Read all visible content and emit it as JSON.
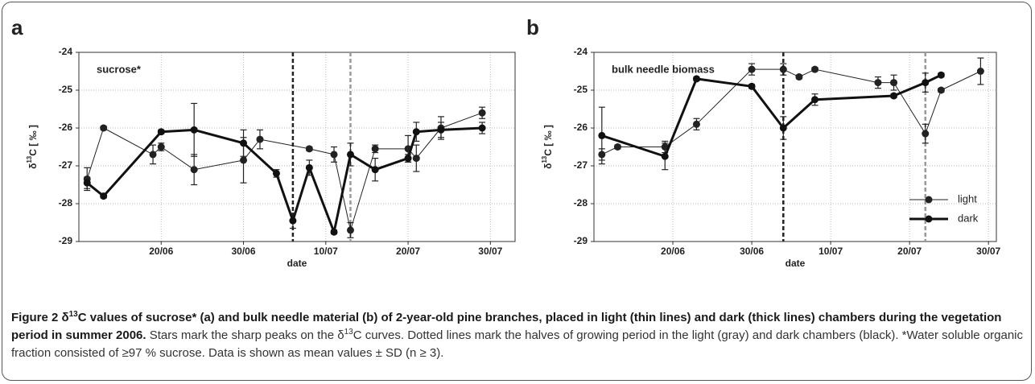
{
  "chart_data": [
    {
      "type": "line",
      "panel_label": "a",
      "annotation": "sucrose*",
      "xlabel": "date",
      "ylabel": {
        "prefix": "δ",
        "sup": "13",
        "suffix": "C [ ‰ ]"
      },
      "xlim": [
        "10/06",
        "02/08"
      ],
      "xticks": [
        "20/06",
        "30/06",
        "10/07",
        "20/07",
        "30/07"
      ],
      "ylim": [
        -29,
        -24
      ],
      "yticks": [
        -24,
        -25,
        -26,
        -27,
        -28,
        -29
      ],
      "grid": true,
      "legend": false,
      "vlines": [
        {
          "x": "06/07",
          "color": "#222222"
        },
        {
          "x": "13/07",
          "color": "#999999"
        }
      ],
      "series": [
        {
          "color": "#222222",
          "line_width": 1,
          "x": [
            "11/06",
            "13/06",
            "19/06",
            "20/06",
            "24/06",
            "30/06",
            "02/07",
            "08/07",
            "11/07",
            "13/07",
            "16/07",
            "20/07",
            "21/07",
            "24/07",
            "29/07"
          ],
          "values": [
            -27.35,
            -26.0,
            -26.7,
            -26.5,
            -27.1,
            -26.85,
            -26.3,
            -26.55,
            -26.7,
            -28.7,
            -26.55,
            -26.55,
            -26.8,
            -26.0,
            -25.6
          ],
          "errors": [
            0.3,
            0.05,
            0.25,
            0.1,
            0.4,
            0.6,
            0.25,
            0.05,
            0.2,
            0.2,
            0.1,
            0.35,
            0.35,
            0.3,
            0.15
          ]
        },
        {
          "color": "#111111",
          "line_width": 3,
          "x": [
            "11/06",
            "13/06",
            "20/06",
            "24/06",
            "30/06",
            "04/07",
            "06/07",
            "08/07",
            "11/07",
            "13/07",
            "16/07",
            "20/07",
            "21/07",
            "24/07",
            "29/07"
          ],
          "values": [
            -27.45,
            -27.8,
            -26.1,
            -26.05,
            -26.4,
            -27.2,
            -28.45,
            -27.05,
            -28.75,
            -26.7,
            -27.1,
            -26.8,
            -26.1,
            -26.05,
            -26.0
          ],
          "errors": [
            0.15,
            0.05,
            0.05,
            0.7,
            0.35,
            0.1,
            0.2,
            0.2,
            0.05,
            0.3,
            0.3,
            0.1,
            0.25,
            0.2,
            0.15
          ]
        }
      ]
    },
    {
      "type": "line",
      "panel_label": "b",
      "annotation": "bulk needle biomass",
      "xlabel": "date",
      "ylabel": {
        "prefix": "δ",
        "sup": "13",
        "suffix": "C [ ‰ ]"
      },
      "xlim": [
        "10/06",
        "31/07"
      ],
      "xticks": [
        "20/06",
        "30/06",
        "10/07",
        "20/07",
        "30/07"
      ],
      "ylim": [
        -29,
        -24
      ],
      "yticks": [
        -24,
        -25,
        -26,
        -27,
        -28,
        -29
      ],
      "grid": true,
      "legend": "lower right",
      "vlines": [
        {
          "x": "04/07",
          "color": "#222222"
        },
        {
          "x": "22/07",
          "color": "#999999"
        }
      ],
      "series": [
        {
          "name": "light",
          "color": "#222222",
          "line_width": 1,
          "x": [
            "11/06",
            "13/06",
            "19/06",
            "23/06",
            "30/06",
            "04/07",
            "06/07",
            "08/07",
            "16/07",
            "18/07",
            "22/07",
            "24/07",
            "29/07"
          ],
          "values": [
            -26.7,
            -26.5,
            -26.5,
            -25.9,
            -24.45,
            -24.45,
            -24.65,
            -24.45,
            -24.8,
            -24.8,
            -26.15,
            -25.0,
            -24.5
          ],
          "errors": [
            0.15,
            0.05,
            0.15,
            0.15,
            0.15,
            0.15,
            0.05,
            0.05,
            0.15,
            0.2,
            0.25,
            0.05,
            0.35
          ]
        },
        {
          "name": "dark",
          "color": "#111111",
          "line_width": 3,
          "x": [
            "11/06",
            "19/06",
            "23/06",
            "30/06",
            "04/07",
            "08/07",
            "18/07",
            "22/07",
            "24/07"
          ],
          "values": [
            -26.2,
            -26.75,
            -24.7,
            -24.9,
            -26.0,
            -25.25,
            -25.15,
            -24.8,
            -24.6
          ],
          "errors": [
            0.75,
            0.35,
            0.05,
            0.05,
            0.3,
            0.15,
            0.05,
            0.25,
            0.05
          ]
        }
      ]
    }
  ],
  "caption": [
    {
      "text": "Figure 2 δ",
      "style": "bold"
    },
    {
      "text": "13",
      "style": "bold-sup"
    },
    {
      "text": "C values of sucrose* (a) and bulk needle material (b) of 2-year-old pine branches, placed in light (thin lines) and dark (thick lines) chambers during the vegetation period in summer 2006.",
      "style": "bold"
    },
    {
      "text": " Stars mark the sharp peaks on the δ",
      "style": "normal"
    },
    {
      "text": "13",
      "style": "sup"
    },
    {
      "text": "C curves. Dotted lines mark the halves of growing period in the light (gray) and dark chambers (black). *Water soluble organic fraction consisted of ≥97 % sucrose. Data is shown as mean values ± SD (n ≥ 3).",
      "style": "normal"
    }
  ]
}
